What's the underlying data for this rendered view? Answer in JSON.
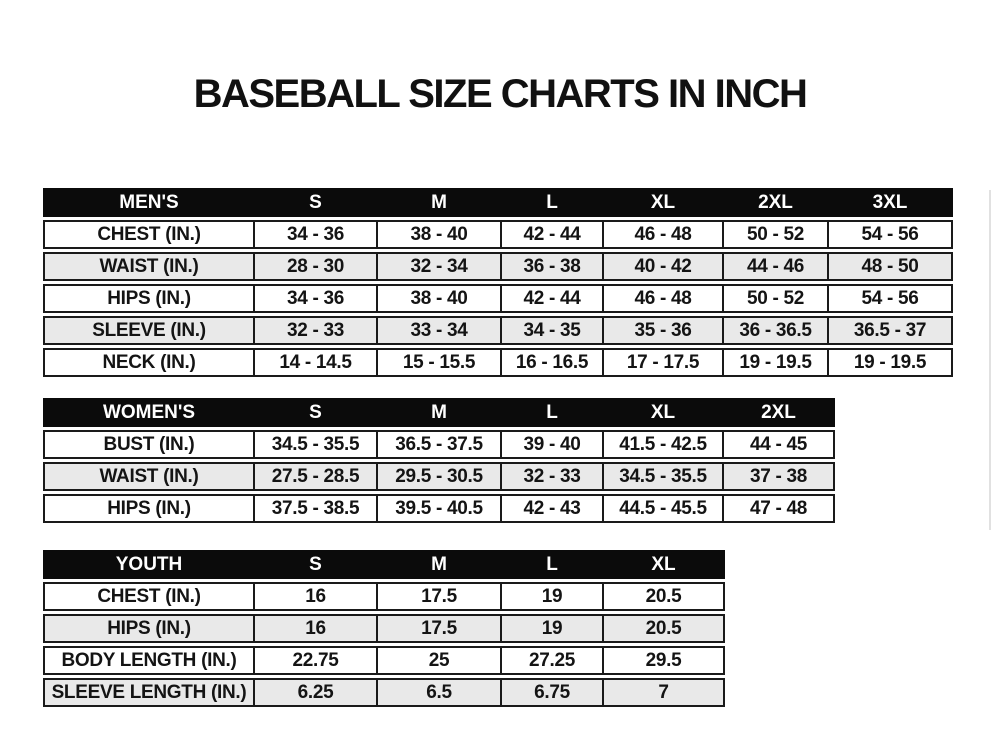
{
  "title": "BASEBALL SIZE CHARTS IN INCH",
  "colors": {
    "header_bg": "#0b0b0b",
    "header_text": "#ffffff",
    "row_alt_bg": "#e9e9e9",
    "border": "#1a1a1a",
    "text": "#141414"
  },
  "tables": [
    {
      "name": "MEN'S",
      "columns": [
        "S",
        "M",
        "L",
        "XL",
        "2XL",
        "3XL"
      ],
      "rows": [
        {
          "label": "CHEST (IN.)",
          "values": [
            "34 - 36",
            "38 - 40",
            "42 - 44",
            "46 - 48",
            "50 - 52",
            "54 - 56"
          ]
        },
        {
          "label": "WAIST (IN.)",
          "values": [
            "28 - 30",
            "32 - 34",
            "36 - 38",
            "40 - 42",
            "44 - 46",
            "48 - 50"
          ]
        },
        {
          "label": "HIPS (IN.)",
          "values": [
            "34 - 36",
            "38 - 40",
            "42 - 44",
            "46 - 48",
            "50 - 52",
            "54 - 56"
          ]
        },
        {
          "label": "SLEEVE (IN.)",
          "values": [
            "32 - 33",
            "33 - 34",
            "34 - 35",
            "35 - 36",
            "36 - 36.5",
            "36.5 - 37"
          ]
        },
        {
          "label": "NECK (IN.)",
          "values": [
            "14 - 14.5",
            "15 - 15.5",
            "16 - 16.5",
            "17 - 17.5",
            "19 - 19.5",
            "19 - 19.5"
          ]
        }
      ]
    },
    {
      "name": "WOMEN'S",
      "columns": [
        "S",
        "M",
        "L",
        "XL",
        "2XL"
      ],
      "rows": [
        {
          "label": "BUST (IN.)",
          "values": [
            "34.5 - 35.5",
            "36.5 - 37.5",
            "39 - 40",
            "41.5 - 42.5",
            "44 - 45"
          ]
        },
        {
          "label": "WAIST (IN.)",
          "values": [
            "27.5 - 28.5",
            "29.5 - 30.5",
            "32 - 33",
            "34.5 - 35.5",
            "37 - 38"
          ]
        },
        {
          "label": "HIPS (IN.)",
          "values": [
            "37.5 - 38.5",
            "39.5 - 40.5",
            "42 - 43",
            "44.5 - 45.5",
            "47 - 48"
          ]
        }
      ]
    },
    {
      "name": "YOUTH",
      "columns": [
        "S",
        "M",
        "L",
        "XL"
      ],
      "rows": [
        {
          "label": "CHEST (IN.)",
          "values": [
            "16",
            "17.5",
            "19",
            "20.5"
          ]
        },
        {
          "label": "HIPS (IN.)",
          "values": [
            "16",
            "17.5",
            "19",
            "20.5"
          ]
        },
        {
          "label": "BODY LENGTH (IN.)",
          "values": [
            "22.75",
            "25",
            "27.25",
            "29.5"
          ]
        },
        {
          "label": "SLEEVE LENGTH (IN.)",
          "values": [
            "6.25",
            "6.5",
            "6.75",
            "7"
          ]
        }
      ]
    }
  ]
}
